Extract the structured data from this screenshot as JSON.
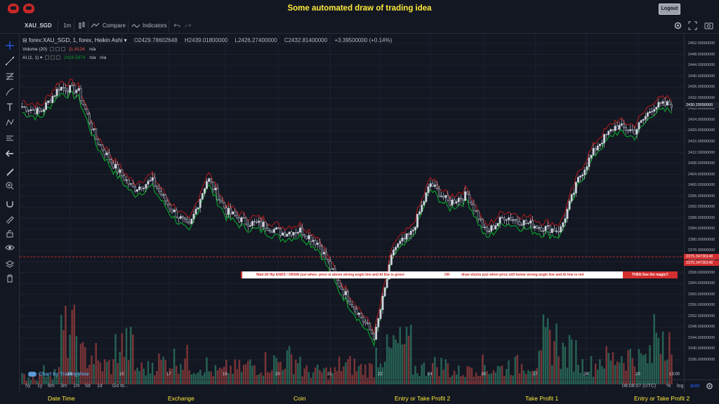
{
  "header": {
    "title": "Some automated draw of trading idea",
    "logout_label": "Logout"
  },
  "toolbar": {
    "symbol": "XAU_SGD",
    "interval": "1m",
    "compare": "Compare",
    "indicators": "Indicators"
  },
  "legend": {
    "series": "forex:XAU_SGD, 1, forex, Heikin Ashi",
    "open": "O2429.78602648",
    "high": "H2439.01800000",
    "low": "L2426.27400000",
    "close": "C2432.81400000",
    "change": "+3.39500000 (+0.14%)",
    "volume_label": "Volume (20)",
    "volume_value": "11.812K",
    "volume_na": "n/a",
    "ai_label": "AI (1, 1)",
    "ai_value": "2428.5974",
    "ai_na1": "n/a",
    "ai_na2": "n/a"
  },
  "price_axis": {
    "labels": [
      "2452.00000000",
      "2448.00000000",
      "2444.00000000",
      "2440.00000000",
      "2436.00000000",
      "2432.00000000",
      "2428.00000000",
      "2424.00000000",
      "2420.00000000",
      "2416.00000000",
      "2412.00000000",
      "2408.00000000",
      "2404.00000000",
      "2400.00000000",
      "2396.00000000",
      "2392.00000000",
      "2388.00000000",
      "2384.00000000",
      "2380.00000000",
      "2376.00000000",
      "2372.00000000",
      "2368.00000000",
      "2364.00000000",
      "2360.00000000",
      "2356.00000000",
      "2352.00000000",
      "2348.00000000",
      "2344.00000000",
      "2340.00000000",
      "2336.00000000"
    ],
    "current_price": "2430.20050000",
    "line_price_1": "2375.34730148",
    "line_price_2": "2375.34730148"
  },
  "time_axis": {
    "labels": [
      "14",
      "15",
      "17",
      "19",
      "20",
      "21",
      "22",
      "24",
      "26",
      "27",
      "28",
      "29",
      "13:00"
    ]
  },
  "banner": {
    "part1": "Wait till flip ENDS  !   DRAW just when:  price is above strong angle line and AI line is green",
    "or": "OR",
    "part2": "draw shorts just when price still below strong angle line and AI line is red",
    "magic": "THEN See the magic!!"
  },
  "bottom_bar": {
    "ranges": [
      "5y",
      "1y",
      "6m",
      "3m",
      "1m",
      "5d",
      "1d"
    ],
    "goto": "Go to...",
    "clock": "08:08:07 (UTC)",
    "percent": "%",
    "log": "log",
    "auto": "auto"
  },
  "watermark": "Chart by TradingView",
  "footer": {
    "items": [
      "Date Time",
      "Exchange",
      "Coin",
      "Entry or Take Profit 2",
      "Take Profit 1",
      "Entry or Take Profit 2"
    ]
  },
  "colors": {
    "background": "#131722",
    "title_yellow": "#ffeb3b",
    "up_green": "#26a69a",
    "down_red": "#ef5350",
    "ai_green": "#0a9d2a",
    "ai_red": "#b71c1c",
    "banner_red": "#d32f2f"
  },
  "chart_data": {
    "type": "candlestick",
    "instrument": "XAU_SGD",
    "style": "Heikin Ashi",
    "ylim": [
      2334,
      2454
    ],
    "x": [
      "14",
      "15",
      "17",
      "19",
      "20",
      "21",
      "22",
      "24",
      "26",
      "27",
      "28",
      "29",
      "13:00"
    ],
    "price_path": [
      2430,
      2428,
      2437,
      2436,
      2418,
      2408,
      2400,
      2403,
      2393,
      2386,
      2404,
      2392,
      2388,
      2387,
      2384,
      2385,
      2380,
      2366,
      2356,
      2346,
      2378,
      2384,
      2402,
      2395,
      2398,
      2384,
      2390,
      2388,
      2386,
      2385,
      2404,
      2416,
      2423,
      2421,
      2430,
      2431
    ],
    "horizontal_line": 2375.34730148,
    "volume_relative": [
      0.12,
      0.2,
      0.8,
      0.45,
      0.3,
      0.6,
      0.25,
      0.35,
      0.4,
      0.3,
      0.2,
      0.25,
      0.3,
      0.35,
      0.4,
      0.2,
      0.2,
      0.3,
      0.25,
      0.5,
      0.6,
      0.25,
      0.3,
      0.2,
      0.3,
      0.25,
      0.3,
      0.35,
      0.7,
      0.5,
      0.3,
      0.4,
      0.45,
      0.4,
      0.9,
      0.35
    ]
  }
}
